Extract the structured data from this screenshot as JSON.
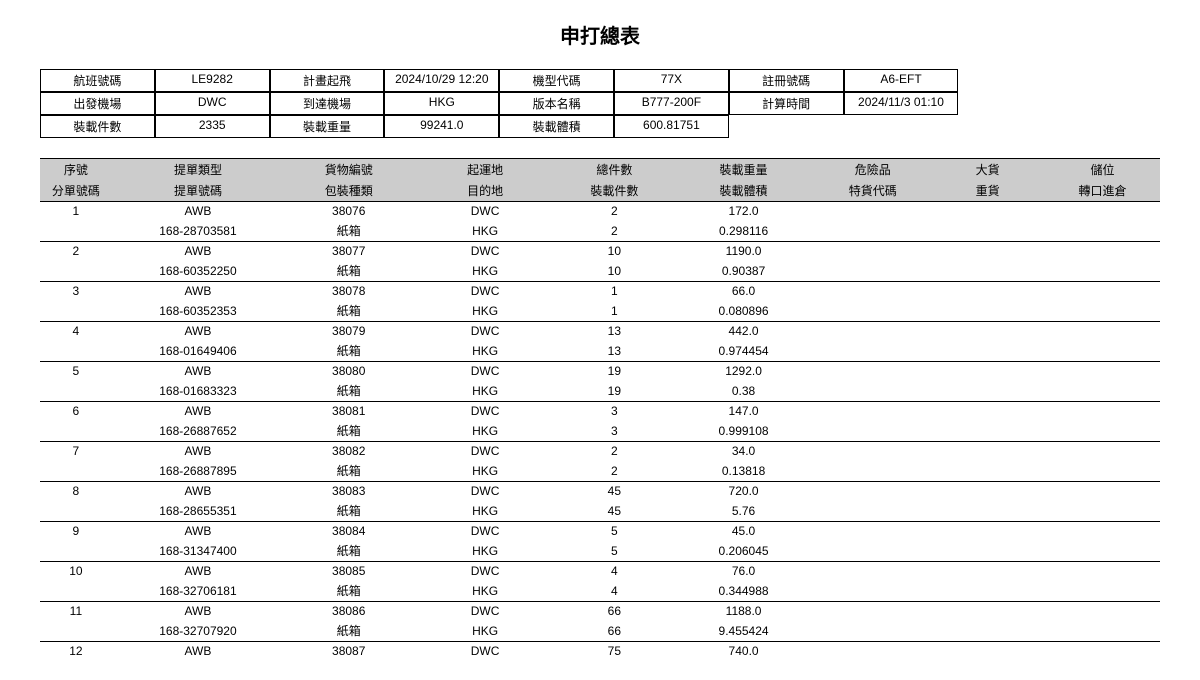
{
  "title": "申打總表",
  "info": {
    "row1": {
      "l1": "航班號碼",
      "v1": "LE9282",
      "l2": "計畫起飛",
      "v2": "2024/10/29 12:20",
      "l3": "機型代碼",
      "v3": "77X",
      "l4": "註冊號碼",
      "v4": "A6-EFT"
    },
    "row2": {
      "l1": "出發機場",
      "v1": "DWC",
      "l2": "到達機場",
      "v2": "HKG",
      "l3": "版本名稱",
      "v3": "B777-200F",
      "l4": "計算時間",
      "v4": "2024/11/3 01:10"
    },
    "row3": {
      "l1": "裝載件數",
      "v1": "2335",
      "l2": "裝載重量",
      "v2": "99241.0",
      "l3": "裝載體積",
      "v3": "600.81751",
      "l4": "",
      "v4": ""
    }
  },
  "columns": {
    "top": [
      "序號",
      "提單類型",
      "貨物編號",
      "起運地",
      "總件數",
      "裝載重量",
      "危險品",
      "大貨",
      "儲位"
    ],
    "bottom": [
      "分單號碼",
      "提單號碼",
      "包裝種類",
      "目的地",
      "裝載件數",
      "裝載體積",
      "特貨代碼",
      "重貨",
      "轉口進倉"
    ]
  },
  "rows": [
    {
      "seq": "1",
      "awb_type": "AWB",
      "cargo_no": "38076",
      "origin": "DWC",
      "total_pieces": "2",
      "load_weight": "172.0",
      "hawb": "",
      "awb_no": "168-28703581",
      "pack": "紙箱",
      "dest": "HKG",
      "load_pieces": "2",
      "load_volume": "0.298116"
    },
    {
      "seq": "2",
      "awb_type": "AWB",
      "cargo_no": "38077",
      "origin": "DWC",
      "total_pieces": "10",
      "load_weight": "1190.0",
      "hawb": "",
      "awb_no": "168-60352250",
      "pack": "紙箱",
      "dest": "HKG",
      "load_pieces": "10",
      "load_volume": "0.90387"
    },
    {
      "seq": "3",
      "awb_type": "AWB",
      "cargo_no": "38078",
      "origin": "DWC",
      "total_pieces": "1",
      "load_weight": "66.0",
      "hawb": "",
      "awb_no": "168-60352353",
      "pack": "紙箱",
      "dest": "HKG",
      "load_pieces": "1",
      "load_volume": "0.080896"
    },
    {
      "seq": "4",
      "awb_type": "AWB",
      "cargo_no": "38079",
      "origin": "DWC",
      "total_pieces": "13",
      "load_weight": "442.0",
      "hawb": "",
      "awb_no": "168-01649406",
      "pack": "紙箱",
      "dest": "HKG",
      "load_pieces": "13",
      "load_volume": "0.974454"
    },
    {
      "seq": "5",
      "awb_type": "AWB",
      "cargo_no": "38080",
      "origin": "DWC",
      "total_pieces": "19",
      "load_weight": "1292.0",
      "hawb": "",
      "awb_no": "168-01683323",
      "pack": "紙箱",
      "dest": "HKG",
      "load_pieces": "19",
      "load_volume": "0.38"
    },
    {
      "seq": "6",
      "awb_type": "AWB",
      "cargo_no": "38081",
      "origin": "DWC",
      "total_pieces": "3",
      "load_weight": "147.0",
      "hawb": "",
      "awb_no": "168-26887652",
      "pack": "紙箱",
      "dest": "HKG",
      "load_pieces": "3",
      "load_volume": "0.999108"
    },
    {
      "seq": "7",
      "awb_type": "AWB",
      "cargo_no": "38082",
      "origin": "DWC",
      "total_pieces": "2",
      "load_weight": "34.0",
      "hawb": "",
      "awb_no": "168-26887895",
      "pack": "紙箱",
      "dest": "HKG",
      "load_pieces": "2",
      "load_volume": "0.13818"
    },
    {
      "seq": "8",
      "awb_type": "AWB",
      "cargo_no": "38083",
      "origin": "DWC",
      "total_pieces": "45",
      "load_weight": "720.0",
      "hawb": "",
      "awb_no": "168-28655351",
      "pack": "紙箱",
      "dest": "HKG",
      "load_pieces": "45",
      "load_volume": "5.76"
    },
    {
      "seq": "9",
      "awb_type": "AWB",
      "cargo_no": "38084",
      "origin": "DWC",
      "total_pieces": "5",
      "load_weight": "45.0",
      "hawb": "",
      "awb_no": "168-31347400",
      "pack": "紙箱",
      "dest": "HKG",
      "load_pieces": "5",
      "load_volume": "0.206045"
    },
    {
      "seq": "10",
      "awb_type": "AWB",
      "cargo_no": "38085",
      "origin": "DWC",
      "total_pieces": "4",
      "load_weight": "76.0",
      "hawb": "",
      "awb_no": "168-32706181",
      "pack": "紙箱",
      "dest": "HKG",
      "load_pieces": "4",
      "load_volume": "0.344988"
    },
    {
      "seq": "11",
      "awb_type": "AWB",
      "cargo_no": "38086",
      "origin": "DWC",
      "total_pieces": "66",
      "load_weight": "1188.0",
      "hawb": "",
      "awb_no": "168-32707920",
      "pack": "紙箱",
      "dest": "HKG",
      "load_pieces": "66",
      "load_volume": "9.455424"
    },
    {
      "seq": "12",
      "awb_type": "AWB",
      "cargo_no": "38087",
      "origin": "DWC",
      "total_pieces": "75",
      "load_weight": "740.0",
      "hawb": "",
      "awb_no": "",
      "pack": "",
      "dest": "",
      "load_pieces": "",
      "load_volume": ""
    }
  ],
  "style": {
    "header_bg": "#cccccc",
    "text_color": "#000000",
    "border_color": "#000000",
    "font_size_body": 12,
    "font_size_title": 20
  }
}
